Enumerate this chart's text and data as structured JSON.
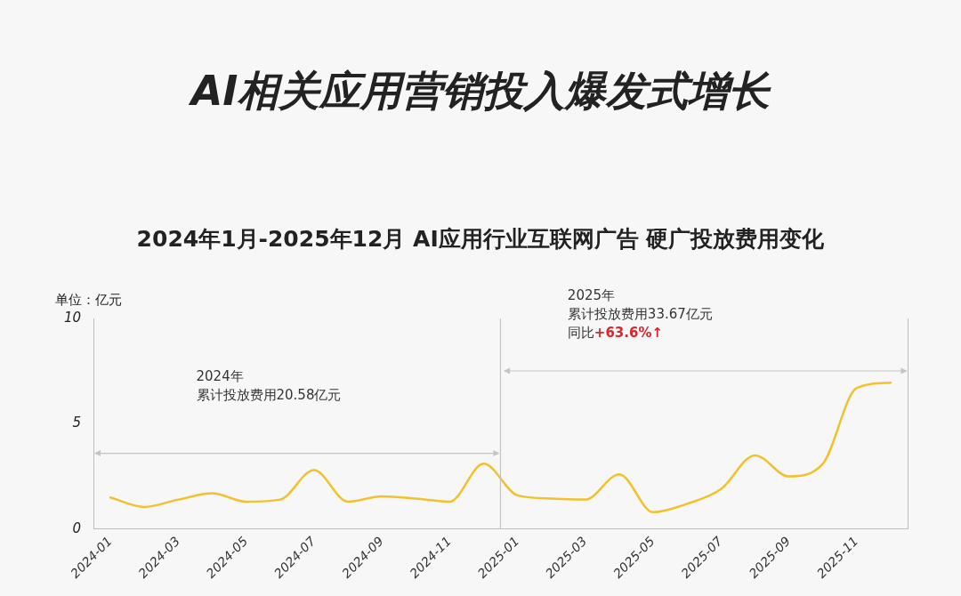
{
  "chart_data": {
    "type": "line",
    "title": "AI相关应用营销投入爆发式增长",
    "subtitle": "2024年1月-2025年12月 AI应用行业互联网广告 硬广投放费用变化",
    "ylabel": "单位：亿元",
    "categories": [
      "2024-01",
      null,
      "2024-03",
      null,
      "2024-05",
      null,
      "2024-07",
      null,
      "2024-09",
      null,
      "2024-11",
      null,
      "2025-01",
      null,
      "2025-03",
      null,
      "2025-05",
      null,
      "2025-07",
      null,
      "2025-09",
      null,
      "2025-11",
      null
    ],
    "series": [
      {
        "color": "#f2c12e",
        "values": [
          1.5,
          1.05,
          1.4,
          1.7,
          1.3,
          1.4,
          2.8,
          1.3,
          1.55,
          1.45,
          1.3,
          3.1,
          1.6,
          1.45,
          1.4,
          2.6,
          0.8,
          1.2,
          1.9,
          3.5,
          2.5,
          3.1,
          6.7,
          6.95
        ]
      }
    ],
    "ylim": [
      0,
      10
    ],
    "yticks": [
      0,
      5,
      10
    ],
    "grid": false,
    "legend": false,
    "marker": "none",
    "line_style": "solid",
    "annotations": [
      "2024年",
      "累计投放费用20.58亿元",
      "2025年",
      "累计投放费用33.67亿元",
      "同比",
      "+63.6%↑"
    ]
  }
}
